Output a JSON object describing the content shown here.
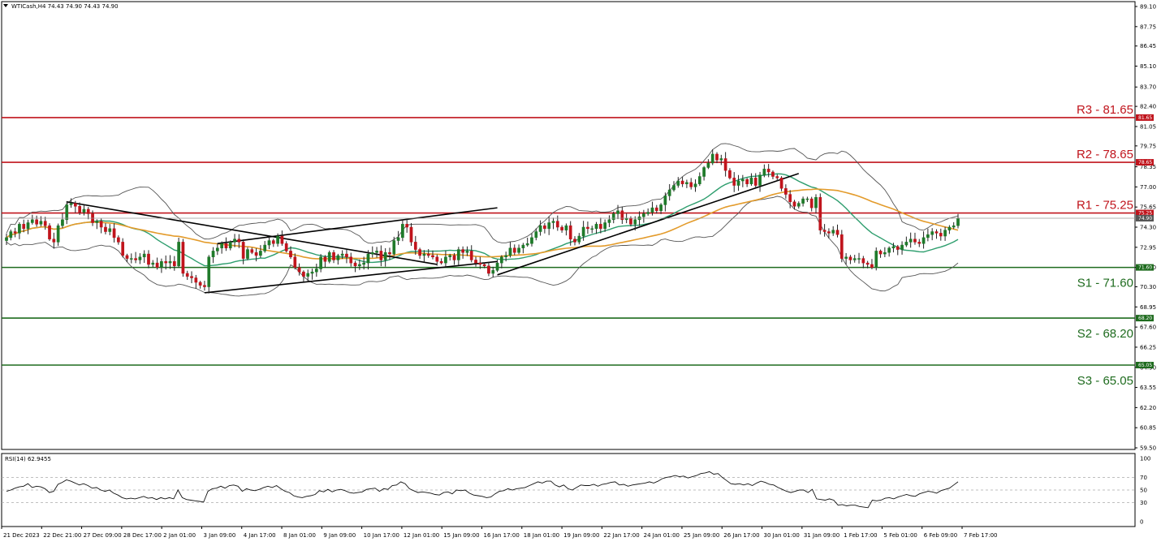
{
  "header": {
    "symbol_text": "WTICash,H4  74.43 74.90 74.43 74.90",
    "rsi_label": "RSI(14) 62.9455"
  },
  "chart_data": {
    "type": "candlestick",
    "symbol": "WTICash",
    "timeframe": "H4",
    "ohlc_current": {
      "open": 74.43,
      "high": 74.9,
      "low": 74.43,
      "close": 74.9
    },
    "price_axis": {
      "ylim": [
        59.5,
        89.1
      ],
      "ticks": [
        "89.10",
        "87.75",
        "86.45",
        "85.10",
        "83.70",
        "82.40",
        "81.05",
        "79.75",
        "78.35",
        "77.00",
        "75.65",
        "74.30",
        "72.95",
        "71.60",
        "70.30",
        "68.95",
        "67.60",
        "66.25",
        "64.90",
        "63.55",
        "62.20",
        "60.85",
        "59.50"
      ]
    },
    "x_ticks": [
      "21 Dec 2023",
      "22 Dec 21:00",
      "27 Dec 09:00",
      "28 Dec 17:00",
      "2 Jan 01:00",
      "3 Jan 09:00",
      "4 Jan 17:00",
      "8 Jan 01:00",
      "9 Jan 09:00",
      "10 Jan 17:00",
      "12 Jan 01:00",
      "15 Jan 09:00",
      "16 Jan 17:00",
      "18 Jan 01:00",
      "19 Jan 09:00",
      "22 Jan 17:00",
      "24 Jan 01:00",
      "25 Jan 09:00",
      "26 Jan 17:00",
      "30 Jan 01:00",
      "31 Jan 09:00",
      "1 Feb 17:00",
      "5 Feb 01:00",
      "6 Feb 09:00",
      "7 Feb 17:00"
    ],
    "levels": [
      {
        "name": "R3",
        "label": "R3 - 81.65",
        "value": 81.65,
        "tag": "81.65",
        "color": "#c0141c"
      },
      {
        "name": "R2",
        "label": "R2 - 78.65",
        "value": 78.65,
        "tag": "78.65",
        "color": "#c0141c"
      },
      {
        "name": "R1",
        "label": "R1 - 75.25",
        "value": 75.25,
        "tag": "75.25",
        "color": "#c0141c"
      },
      {
        "name": "S1",
        "label": "S1 - 71.60",
        "value": 71.6,
        "tag": "71.60",
        "color": "#1e6b1e"
      },
      {
        "name": "S2",
        "label": "S2 - 68.20",
        "value": 68.2,
        "tag": "68.20",
        "color": "#1e6b1e"
      },
      {
        "name": "S3",
        "label": "S3 - 65.05",
        "value": 65.05,
        "tag": "65.05",
        "color": "#1e6b1e"
      }
    ],
    "current_price_tag": "74.90",
    "close_series": [
      73.6,
      74.0,
      73.9,
      74.5,
      74.2,
      74.6,
      74.8,
      74.5,
      74.7,
      74.4,
      73.5,
      73.3,
      74.4,
      74.8,
      75.8,
      75.9,
      75.7,
      75.3,
      75.5,
      75.2,
      74.6,
      74.7,
      74.3,
      74.0,
      74.2,
      73.6,
      73.3,
      72.4,
      72.2,
      72.2,
      72.1,
      72.3,
      72.5,
      71.8,
      71.9,
      71.6,
      72.0,
      71.9,
      72.0,
      71.7,
      73.3,
      71.2,
      71.0,
      70.9,
      70.6,
      70.4,
      70.3,
      72.3,
      72.7,
      72.9,
      73.2,
      72.9,
      73.3,
      73.5,
      73.3,
      72.2,
      72.8,
      72.6,
      72.4,
      72.7,
      73.1,
      73.4,
      73.2,
      73.7,
      73.2,
      72.7,
      72.3,
      71.6,
      71.3,
      71.0,
      71.2,
      71.3,
      71.5,
      72.3,
      72.0,
      72.6,
      72.1,
      72.4,
      72.5,
      72.3,
      71.9,
      71.7,
      71.8,
      71.9,
      72.5,
      72.6,
      72.7,
      72.1,
      72.6,
      72.5,
      73.4,
      73.6,
      74.5,
      74.3,
      73.3,
      72.8,
      72.4,
      72.5,
      72.4,
      72.3,
      72.0,
      71.9,
      72.3,
      72.4,
      72.1,
      72.8,
      72.6,
      72.7,
      72.1,
      71.9,
      71.8,
      71.7,
      71.2,
      71.4,
      71.9,
      72.3,
      72.4,
      72.9,
      72.6,
      72.9,
      73.1,
      73.2,
      73.6,
      74.0,
      74.4,
      74.2,
      74.6,
      74.7,
      74.3,
      74.1,
      74.4,
      73.5,
      73.3,
      73.7,
      74.3,
      74.2,
      74.2,
      74.5,
      74.2,
      74.6,
      74.8,
      75.2,
      75.4,
      74.8,
      74.9,
      74.5,
      74.8,
      75.0,
      75.2,
      75.3,
      75.6,
      75.4,
      75.8,
      76.4,
      76.8,
      77.1,
      77.4,
      77.2,
      77.3,
      77.0,
      77.2,
      77.7,
      78.3,
      78.6,
      79.2,
      78.8,
      78.9,
      78.1,
      77.6,
      77.1,
      77.4,
      77.5,
      77.2,
      77.6,
      77.1,
      77.8,
      78.2,
      78.0,
      77.7,
      77.6,
      76.9,
      76.5,
      76.0,
      75.7,
      75.9,
      76.2,
      76.2,
      75.6,
      76.3,
      74.1,
      74.0,
      73.9,
      74.1,
      73.8,
      72.2,
      72.3,
      72.1,
      72.2,
      72.2,
      71.9,
      71.8,
      71.6,
      72.7,
      72.5,
      72.6,
      72.9,
      73.0,
      72.8,
      73.1,
      73.3,
      73.5,
      73.3,
      73.2,
      73.6,
      73.8,
      74.0,
      73.9,
      73.7,
      74.1,
      74.3,
      74.4,
      74.9
    ],
    "ma_fast_color": "#2e9e6e",
    "ma_slow_color": "#e39b2b",
    "bands_color": "#555555",
    "bull_color": "#1f7a2a",
    "bear_color": "#c0141c",
    "rsi_axis": {
      "ticks": [
        "100",
        "70",
        "50",
        "30",
        "0"
      ],
      "ylim": [
        0,
        100
      ],
      "levels": [
        70,
        50,
        30
      ]
    },
    "rsi_series": [
      48,
      50,
      53,
      55,
      56,
      60,
      54,
      56,
      55,
      52,
      46,
      48,
      59,
      62,
      66,
      64,
      61,
      58,
      60,
      57,
      53,
      54,
      50,
      48,
      50,
      45,
      42,
      38,
      36,
      37,
      36,
      38,
      40,
      37,
      38,
      35,
      38,
      36,
      38,
      36,
      50,
      38,
      35,
      34,
      33,
      32,
      31,
      48,
      52,
      53,
      56,
      53,
      57,
      58,
      56,
      48,
      52,
      50,
      49,
      51,
      54,
      56,
      54,
      57,
      52,
      48,
      46,
      41,
      39,
      38,
      40,
      41,
      43,
      49,
      47,
      51,
      47,
      50,
      51,
      49,
      46,
      45,
      46,
      47,
      51,
      52,
      53,
      48,
      52,
      51,
      57,
      58,
      63,
      60,
      52,
      49,
      46,
      47,
      46,
      45,
      43,
      42,
      46,
      47,
      44,
      50,
      49,
      50,
      45,
      42,
      41,
      40,
      38,
      39,
      44,
      48,
      49,
      52,
      50,
      52,
      53,
      54,
      57,
      60,
      63,
      61,
      64,
      64,
      58,
      55,
      58,
      52,
      50,
      54,
      58,
      57,
      57,
      59,
      56,
      59,
      60,
      62,
      63,
      58,
      59,
      56,
      58,
      59,
      60,
      61,
      63,
      61,
      64,
      68,
      70,
      71,
      73,
      71,
      72,
      69,
      71,
      73,
      76,
      77,
      79,
      75,
      76,
      70,
      65,
      60,
      59,
      60,
      58,
      60,
      57,
      61,
      64,
      62,
      59,
      58,
      54,
      51,
      48,
      46,
      48,
      50,
      50,
      46,
      51,
      36,
      35,
      34,
      36,
      34,
      26,
      27,
      25,
      26,
      26,
      24,
      23,
      22,
      34,
      33,
      34,
      37,
      38,
      36,
      39,
      41,
      43,
      41,
      40,
      44,
      46,
      48,
      47,
      45,
      49,
      51,
      53,
      58,
      63
    ]
  }
}
